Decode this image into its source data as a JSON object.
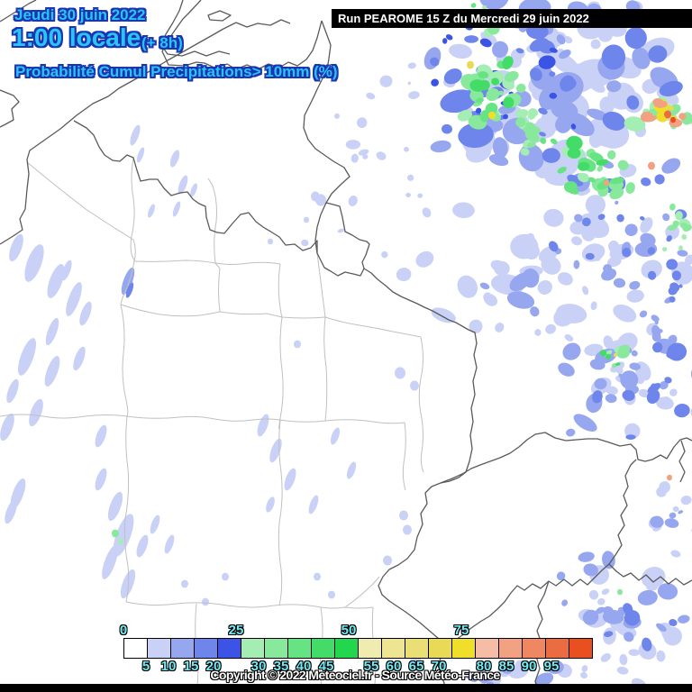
{
  "header": {
    "date": "Jeudi 30 juin 2022",
    "time": "1:00 locale",
    "offset": "(+ 8h)",
    "subtitle": "Probabilité Cumul Precipitations> 10mm (%)"
  },
  "run_banner": {
    "text": "Run PEAROME 15 Z du Mercredi 29 juin 2022"
  },
  "legend": {
    "cells": [
      "#FFFFFF",
      "#C9D1F6",
      "#96A7F0",
      "#6E85EB",
      "#3B54E6",
      "#A4EDB3",
      "#88E99D",
      "#66E383",
      "#44DC68",
      "#22D64E",
      "#F0EBAE",
      "#EDE591",
      "#EADF74",
      "#E8D957",
      "#EFDF2A",
      "#F5BDA5",
      "#F2A283",
      "#EF8762",
      "#EC6C41",
      "#E94F1F"
    ],
    "top_ticks": [
      {
        "label": "0",
        "index": 0
      },
      {
        "label": "25",
        "index": 5
      },
      {
        "label": "50",
        "index": 10
      },
      {
        "label": "75",
        "index": 15
      }
    ],
    "bottom_ticks": [
      {
        "label": "5",
        "index": 1
      },
      {
        "label": "10",
        "index": 2
      },
      {
        "label": "15",
        "index": 3
      },
      {
        "label": "20",
        "index": 4
      },
      {
        "label": "30",
        "index": 6
      },
      {
        "label": "35",
        "index": 7
      },
      {
        "label": "40",
        "index": 8
      },
      {
        "label": "45",
        "index": 9
      },
      {
        "label": "55",
        "index": 11
      },
      {
        "label": "60",
        "index": 12
      },
      {
        "label": "65",
        "index": 13
      },
      {
        "label": "70",
        "index": 14
      },
      {
        "label": "80",
        "index": 16
      },
      {
        "label": "85",
        "index": 17
      },
      {
        "label": "90",
        "index": 18
      },
      {
        "label": "95",
        "index": 19
      }
    ]
  },
  "footer": {
    "copyright": "Copyright © 2022 Meteociel.fr - Source Météo-France"
  },
  "colors": {
    "header_text": "#27C5F8",
    "header_outline": "#1C34B0",
    "tick_text": "#73EAF3",
    "tick_outline": "#000000",
    "banner_bg": "#000000",
    "banner_text": "#FFFFFF",
    "copyright_text": "#FFFFFF",
    "copyright_outline": "#000000",
    "country_border": "#5a5a5a",
    "dept_border": "#c0c0c0",
    "sea": "#FFFFFF"
  }
}
